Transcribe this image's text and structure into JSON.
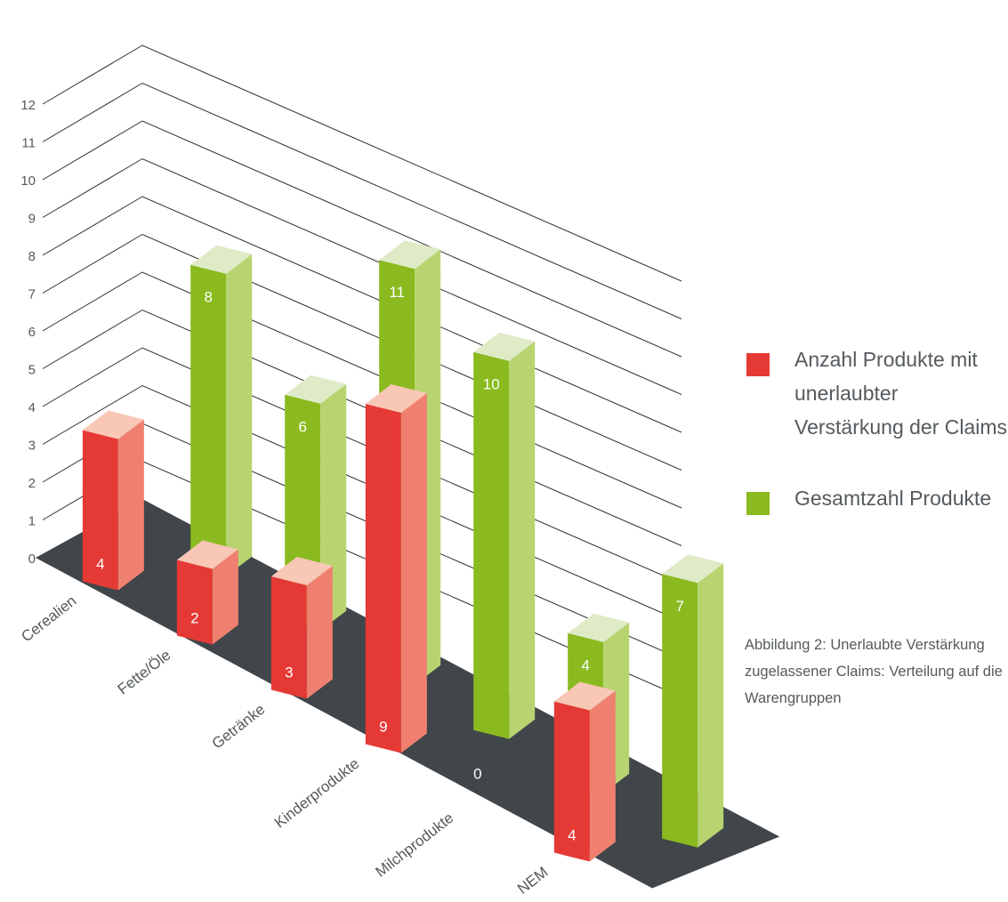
{
  "chart_data": {
    "type": "bar",
    "categories": [
      "Cerealien",
      "Fette/Öle",
      "Getränke",
      "Kinderprodukte",
      "Milchprodukte",
      "NEM"
    ],
    "series": [
      {
        "name": "Anzahl Produkte mit unerlaubter Verstärkung der Claims",
        "values": [
          4,
          2,
          3,
          9,
          0,
          4
        ],
        "color": "#e53935"
      },
      {
        "name": "Gesamtzahl Produkte",
        "values": [
          8,
          6,
          11,
          10,
          4,
          7
        ],
        "color": "#8aba1f"
      }
    ],
    "ylim": [
      0,
      12
    ],
    "yticks": [
      "0",
      "1",
      "2",
      "3",
      "4",
      "5",
      "6",
      "7",
      "8",
      "9",
      "10",
      "11",
      "12"
    ],
    "style": "3d-columns",
    "grid": true,
    "legend_position": "right"
  },
  "caption": "Abbildung 2: Unerlaubte Verstärkung zugelassener Claims: Verteilung auf die Warengruppen",
  "colors": {
    "red_front": "#e53935",
    "red_side": "#ef8070",
    "red_top": "#f8c7b5",
    "green_front": "#8aba1f",
    "green_side": "#b8d470",
    "green_top": "#dfeac7",
    "floor": "#41464b",
    "grid": "#2e2e2e",
    "text": "#555a5e"
  }
}
